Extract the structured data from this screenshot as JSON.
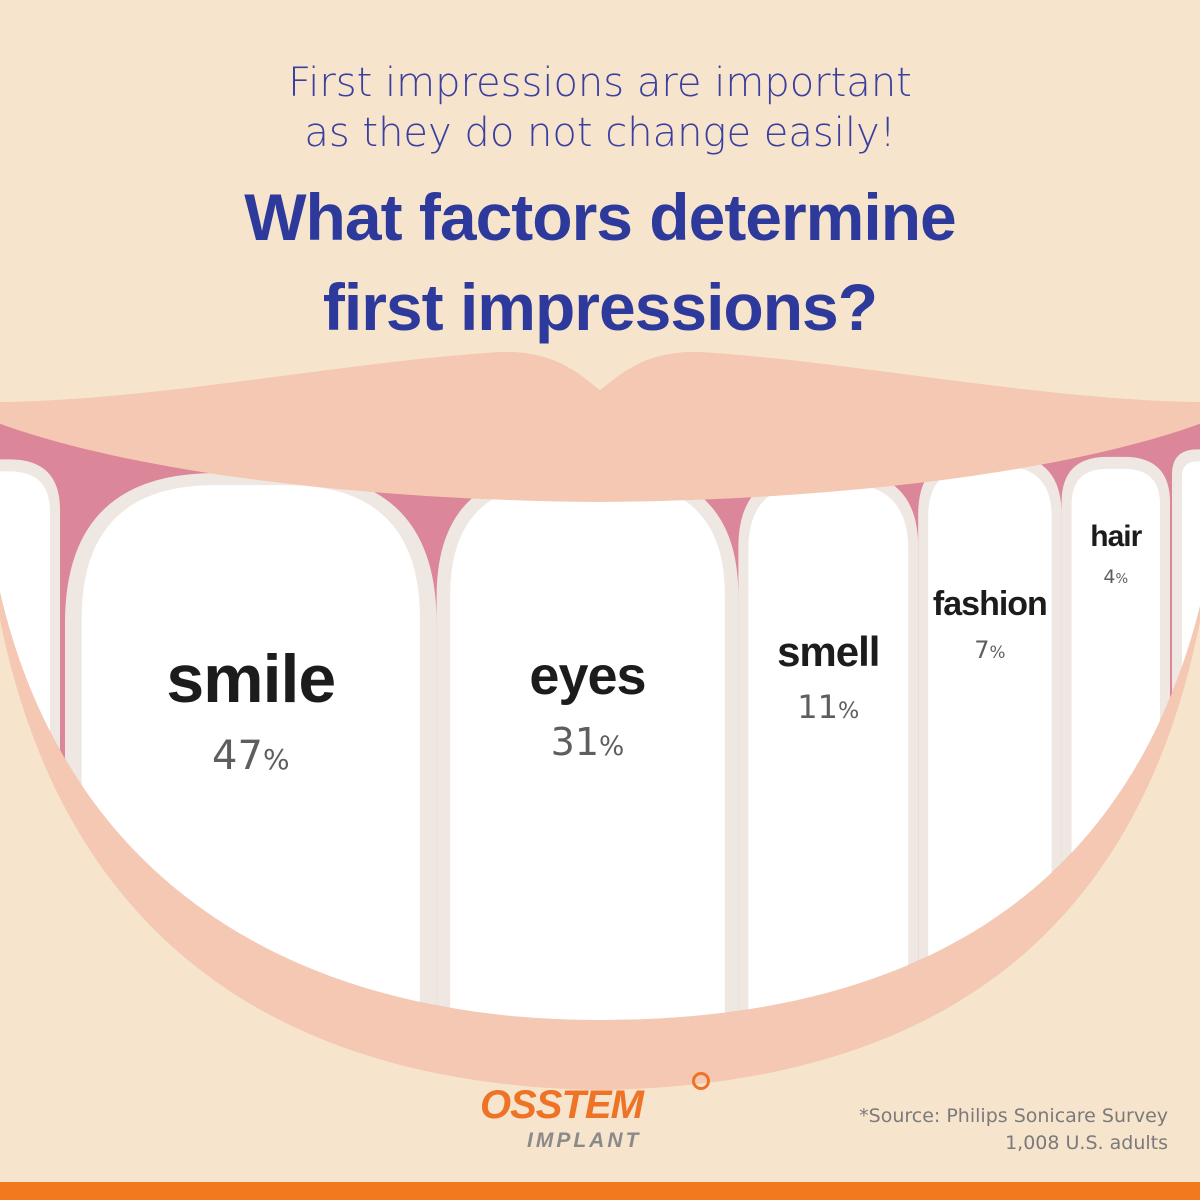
{
  "header": {
    "subtitle_line1": "First impressions are important",
    "subtitle_line2": "as they do not change easily!",
    "title_line1": "What factors determine",
    "title_line2": "first impressions?"
  },
  "chart_data": {
    "type": "bar",
    "categories": [
      "smile",
      "eyes",
      "smell",
      "fashion",
      "hair"
    ],
    "values": [
      47,
      31,
      11,
      7,
      4
    ],
    "value_labels": [
      "47",
      "31",
      "11",
      "7",
      "4"
    ],
    "unit": "%"
  },
  "brand": {
    "name": "OSSTEM",
    "sub": "IMPLANT"
  },
  "source": {
    "line1": "*Source: Philips Sonicare Survey",
    "line2": "1,008 U.S. adults"
  },
  "colors": {
    "background": "#f7e4cd",
    "lip": "#f4c8b2",
    "gum": "#dc8699",
    "tooth": "#ffffff",
    "tooth_shadow": "#efe8e2",
    "title": "#2d3a9c",
    "brand": "#ee7326"
  }
}
